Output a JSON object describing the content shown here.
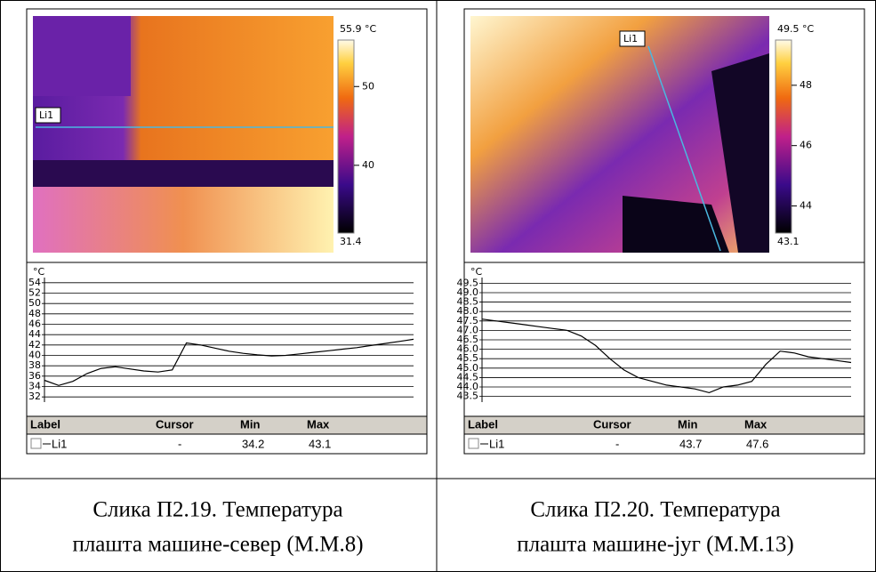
{
  "panels": [
    {
      "image": {
        "line_label": "Li1",
        "colorbar_max": {
          "value": 55.9,
          "label": "55.9 °C"
        },
        "colorbar_min": 31.4,
        "colorbar_ticks": [
          50,
          40
        ]
      },
      "profile": {
        "unit": "°C",
        "ylim": [
          31,
          55
        ],
        "yticks": [
          32,
          34,
          36,
          38,
          40,
          42,
          44,
          46,
          48,
          50,
          52,
          54
        ],
        "values": [
          35.2,
          34.2,
          35.0,
          36.5,
          37.5,
          37.8,
          37.4,
          37.0,
          36.8,
          37.2,
          42.4,
          42.0,
          41.4,
          40.8,
          40.4,
          40.1,
          39.9,
          40.0,
          40.3,
          40.6,
          40.9,
          41.2,
          41.5,
          41.9,
          42.3,
          42.7,
          43.1
        ]
      },
      "table": {
        "headers": [
          "Label",
          "Cursor",
          "Min",
          "Max"
        ],
        "row": [
          "Li1",
          "-",
          "34.2",
          "43.1"
        ]
      },
      "caption": [
        "Слика П2.19. Температура",
        "плашта машине-север (М.М.8)"
      ]
    },
    {
      "image": {
        "line_label": "Li1",
        "colorbar_max": {
          "value": 49.5,
          "label": "49.5 °C"
        },
        "colorbar_min": 43.1,
        "colorbar_ticks": [
          48,
          46,
          44
        ]
      },
      "profile": {
        "unit": "°C",
        "ylim": [
          43.2,
          49.8
        ],
        "yticks": [
          43.5,
          {
            "value": 44,
            "label": "44.0"
          },
          44.5,
          {
            "value": 45,
            "label": "45.0"
          },
          45.5,
          {
            "value": 46,
            "label": "46.0"
          },
          46.5,
          {
            "value": 47,
            "label": "47.0"
          },
          47.5,
          {
            "value": 48,
            "label": "48.0"
          },
          48.5,
          {
            "value": 49,
            "label": "49.0"
          },
          49.5
        ],
        "values": [
          47.6,
          47.5,
          47.4,
          47.3,
          47.2,
          47.1,
          47.0,
          46.7,
          46.2,
          45.5,
          44.9,
          44.5,
          44.3,
          44.1,
          44.0,
          43.9,
          43.7,
          44.0,
          44.1,
          44.3,
          45.2,
          45.9,
          45.8,
          45.6,
          45.5,
          45.4,
          45.3
        ]
      },
      "table": {
        "headers": [
          "Label",
          "Cursor",
          "Min",
          "Max"
        ],
        "row": [
          "Li1",
          "-",
          "43.7",
          "47.6"
        ]
      },
      "caption": [
        "Слика П2.20. Температура",
        "плашта машине-југ (М.М.13)"
      ]
    }
  ]
}
